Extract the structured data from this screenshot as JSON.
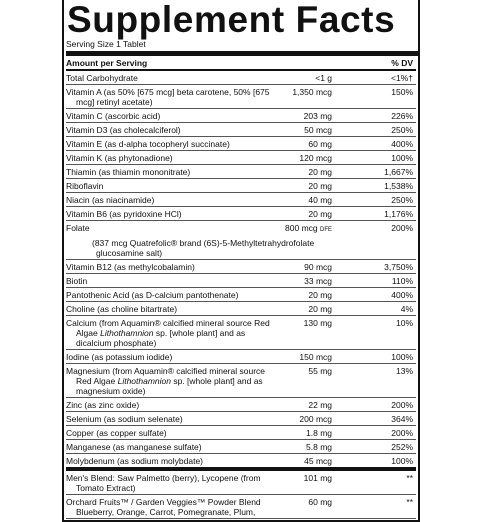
{
  "header": {
    "title": "Supplement Facts",
    "serving_size": "Serving Size 1 Tablet"
  },
  "table": {
    "columns": [
      "Amount per Serving",
      "% DV"
    ],
    "rows": [
      {
        "name": "Total Carbohydrate",
        "amount": "<1 g",
        "dv": "<1%†"
      },
      {
        "name": "Vitamin A (as 50% [675 mcg] beta carotene, 50% [675 mcg] retinyl acetate)",
        "amount": "1,350 mcg",
        "dv": "150%"
      },
      {
        "name": "Vitamin C (ascorbic acid)",
        "amount": "203 mg",
        "dv": "226%"
      },
      {
        "name": "Vitamin D3 (as cholecalciferol)",
        "amount": "50 mcg",
        "dv": "250%"
      },
      {
        "name": "Vitamin E (as d-alpha tocopheryl succinate)",
        "amount": "60 mg",
        "dv": "400%"
      },
      {
        "name": "Vitamin K (as phytonadione)",
        "amount": "120 mcg",
        "dv": "100%"
      },
      {
        "name": "Thiamin (as thiamin mononitrate)",
        "amount": "20 mg",
        "dv": "1,667%"
      },
      {
        "name": "Riboflavin",
        "amount": "20 mg",
        "dv": "1,538%"
      },
      {
        "name": "Niacin (as niacinamide)",
        "amount": "40 mg",
        "dv": "250%"
      },
      {
        "name": "Vitamin B6 (as pyridoxine HCl)",
        "amount": "20 mg",
        "dv": "1,176%"
      },
      {
        "name": "Folate",
        "amount": "800 mcg",
        "amount_unit": "DFE",
        "dv": "200%",
        "note": "(837 mcg Quatrefolic® brand (6S)-5-Methyltetrahydrofolate glucosamine salt)"
      },
      {
        "name": "Vitamin B12 (as methylcobalamin)",
        "amount": "90 mcg",
        "dv": "3,750%"
      },
      {
        "name": "Biotin",
        "amount": "33 mcg",
        "dv": "110%"
      },
      {
        "name": "Pantothenic Acid (as D-calcium pantothenate)",
        "amount": "20 mg",
        "dv": "400%"
      },
      {
        "name": "Choline (as choline bitartrate)",
        "amount": "20 mg",
        "dv": "4%"
      },
      {
        "name": [
          "Calcium (from Aquamin® calcified mineral source Red Algae ",
          "Lithothamnion",
          " sp. [whole plant] and as dicalcium phosphate)"
        ],
        "amount": "130 mg",
        "dv": "10%"
      },
      {
        "name": "Iodine (as potassium iodide)",
        "amount": "150 mcg",
        "dv": "100%"
      },
      {
        "name": [
          "Magnesium (from Aquamin® calcified mineral source Red Algae ",
          "Lithothamnion",
          " sp. [whole plant] and as magnesium oxide)"
        ],
        "amount": "55 mg",
        "dv": "13%"
      },
      {
        "name": "Zinc (as zinc oxide)",
        "amount": "22 mg",
        "dv": "200%"
      },
      {
        "name": "Selenium (as sodium selenate)",
        "amount": "200 mcg",
        "dv": "364%"
      },
      {
        "name": "Copper (as copper sulfate)",
        "amount": "1.8 mg",
        "dv": "200%"
      },
      {
        "name": "Manganese (as manganese sulfate)",
        "amount": "5.8 mg",
        "dv": "252%"
      },
      {
        "name": "Molybdenum (as sodium molybdate)",
        "amount": "45 mcg",
        "dv": "100%"
      }
    ],
    "blend_rows": [
      {
        "name": "Men's Blend: Saw Palmetto (berry), Lycopene (from Tomato Extract)",
        "amount": "101 mg",
        "dv": "**"
      },
      {
        "name": "Orchard Fruits™ / Garden Veggies™ Powder Blend Blueberry, Orange, Carrot, Pomegranate, Plum,",
        "amount": "60 mg",
        "dv": "**"
      }
    ]
  }
}
